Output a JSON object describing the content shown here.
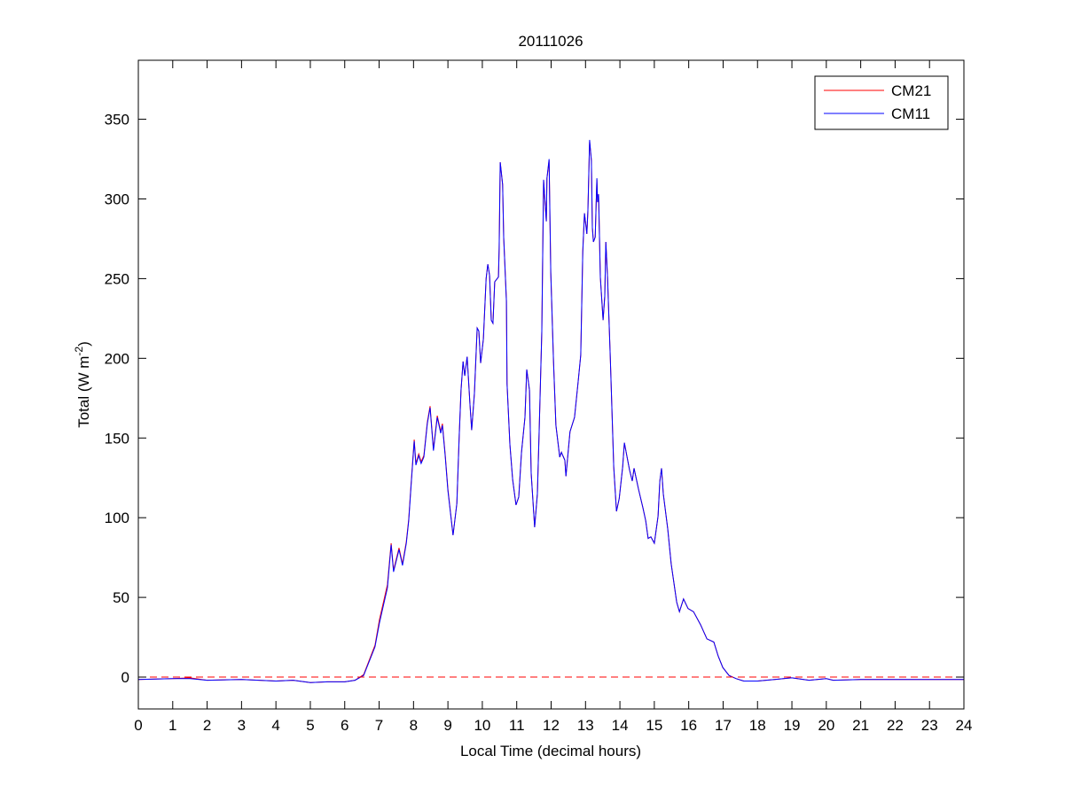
{
  "chart_data": {
    "type": "line",
    "title": "20111026",
    "xlabel": "Local Time (decimal hours)",
    "ylabel_main": "Total (W m",
    "ylabel_sup": "-2",
    "ylabel_close": ")",
    "xlim": [
      0,
      24
    ],
    "ylim": [
      -20,
      387
    ],
    "xticks": [
      0,
      1,
      2,
      3,
      4,
      5,
      6,
      7,
      8,
      9,
      10,
      11,
      12,
      13,
      14,
      15,
      16,
      17,
      18,
      19,
      20,
      21,
      22,
      23,
      24
    ],
    "yticks": [
      0,
      50,
      100,
      150,
      200,
      250,
      300,
      350
    ],
    "grid": false,
    "legend_position": "top-right",
    "reference_line": {
      "y": 0,
      "style": "dashed",
      "color": "#ff0000"
    },
    "series": [
      {
        "name": "CM21",
        "color": "#ff0000",
        "points": [
          [
            0,
            -1.5
          ],
          [
            1,
            -1
          ],
          [
            1.5,
            -0.5
          ],
          [
            2,
            -2
          ],
          [
            3,
            -1.5
          ],
          [
            4,
            -2.5
          ],
          [
            4.5,
            -2
          ],
          [
            5,
            -3.5
          ],
          [
            5.5,
            -3
          ],
          [
            6,
            -3
          ],
          [
            6.3,
            -2
          ],
          [
            6.55,
            1.5
          ],
          [
            6.88,
            20
          ],
          [
            7.01,
            36
          ],
          [
            7.24,
            58
          ],
          [
            7.35,
            84
          ],
          [
            7.42,
            67
          ],
          [
            7.58,
            81
          ],
          [
            7.68,
            71
          ],
          [
            7.79,
            85
          ],
          [
            7.86,
            99
          ],
          [
            7.92,
            118
          ],
          [
            8.02,
            149
          ],
          [
            8.07,
            134
          ],
          [
            8.15,
            140
          ],
          [
            8.22,
            135
          ],
          [
            8.3,
            139
          ],
          [
            8.4,
            160
          ],
          [
            8.48,
            170
          ],
          [
            8.58,
            143
          ],
          [
            8.69,
            164
          ],
          [
            8.79,
            154
          ],
          [
            8.84,
            159
          ],
          [
            8.92,
            140
          ],
          [
            9.0,
            118
          ],
          [
            9.15,
            89
          ],
          [
            9.26,
            109
          ],
          [
            9.33,
            152
          ],
          [
            9.38,
            180
          ],
          [
            9.44,
            198
          ],
          [
            9.49,
            189
          ],
          [
            9.56,
            201
          ],
          [
            9.64,
            171
          ],
          [
            9.69,
            155
          ],
          [
            9.77,
            178
          ],
          [
            9.85,
            219
          ],
          [
            9.9,
            217
          ],
          [
            9.95,
            197
          ],
          [
            10.03,
            212
          ],
          [
            10.11,
            250
          ],
          [
            10.16,
            259
          ],
          [
            10.21,
            252
          ],
          [
            10.26,
            224
          ],
          [
            10.31,
            222
          ],
          [
            10.36,
            248
          ],
          [
            10.47,
            251
          ],
          [
            10.49,
            269
          ],
          [
            10.52,
            323
          ],
          [
            10.59,
            309
          ],
          [
            10.62,
            276
          ],
          [
            10.7,
            236
          ],
          [
            10.72,
            184
          ],
          [
            10.8,
            146
          ],
          [
            10.88,
            124
          ],
          [
            10.98,
            108
          ],
          [
            11.06,
            113
          ],
          [
            11.14,
            141
          ],
          [
            11.24,
            163
          ],
          [
            11.29,
            193
          ],
          [
            11.37,
            180
          ],
          [
            11.42,
            128
          ],
          [
            11.52,
            94
          ],
          [
            11.6,
            115
          ],
          [
            11.65,
            152
          ],
          [
            11.73,
            217
          ],
          [
            11.78,
            312
          ],
          [
            11.86,
            286
          ],
          [
            11.88,
            313
          ],
          [
            11.94,
            324
          ],
          [
            11.99,
            254
          ],
          [
            12.07,
            198
          ],
          [
            12.14,
            158
          ],
          [
            12.25,
            138
          ],
          [
            12.3,
            141
          ],
          [
            12.4,
            136
          ],
          [
            12.43,
            126
          ],
          [
            12.55,
            154
          ],
          [
            12.68,
            163
          ],
          [
            12.79,
            186
          ],
          [
            12.86,
            202
          ],
          [
            12.92,
            267
          ],
          [
            12.97,
            291
          ],
          [
            13.04,
            278
          ],
          [
            13.07,
            293
          ],
          [
            13.12,
            336
          ],
          [
            13.17,
            324
          ],
          [
            13.2,
            282
          ],
          [
            13.23,
            273
          ],
          [
            13.28,
            276
          ],
          [
            13.33,
            312
          ],
          [
            13.35,
            298
          ],
          [
            13.38,
            303
          ],
          [
            13.43,
            251
          ],
          [
            13.51,
            224
          ],
          [
            13.56,
            239
          ],
          [
            13.59,
            273
          ],
          [
            13.64,
            251
          ],
          [
            13.72,
            201
          ],
          [
            13.82,
            132
          ],
          [
            13.9,
            104
          ],
          [
            13.98,
            112
          ],
          [
            14.08,
            132
          ],
          [
            14.13,
            147
          ],
          [
            14.28,
            130
          ],
          [
            14.36,
            123
          ],
          [
            14.41,
            131
          ],
          [
            14.54,
            118
          ],
          [
            14.67,
            106
          ],
          [
            14.75,
            98
          ],
          [
            14.82,
            87
          ],
          [
            14.9,
            88
          ],
          [
            15.0,
            84
          ],
          [
            15.11,
            101
          ],
          [
            15.16,
            123
          ],
          [
            15.21,
            131
          ],
          [
            15.26,
            115
          ],
          [
            15.39,
            93
          ],
          [
            15.49,
            71
          ],
          [
            15.65,
            47
          ],
          [
            15.73,
            41
          ],
          [
            15.85,
            49
          ],
          [
            15.98,
            43
          ],
          [
            16.14,
            41
          ],
          [
            16.34,
            33
          ],
          [
            16.53,
            24
          ],
          [
            16.73,
            22
          ],
          [
            16.86,
            13
          ],
          [
            16.99,
            6
          ],
          [
            17.17,
            1
          ],
          [
            17.38,
            -1
          ],
          [
            17.6,
            -2.5
          ],
          [
            18,
            -2.5
          ],
          [
            18.5,
            -1.5
          ],
          [
            19,
            -0.5
          ],
          [
            19.5,
            -2
          ],
          [
            20,
            -1
          ],
          [
            20.2,
            -2
          ],
          [
            21,
            -1.5
          ],
          [
            22,
            -1.5
          ],
          [
            23,
            -1.5
          ],
          [
            24,
            -1.5
          ]
        ]
      },
      {
        "name": "CM11",
        "color": "#0000ff",
        "points": [
          [
            0,
            -1.5
          ],
          [
            1,
            -1
          ],
          [
            1.5,
            -1
          ],
          [
            2,
            -2
          ],
          [
            3,
            -1.5
          ],
          [
            4,
            -2.5
          ],
          [
            4.5,
            -2
          ],
          [
            5,
            -3.5
          ],
          [
            5.5,
            -3
          ],
          [
            6,
            -3
          ],
          [
            6.3,
            -2
          ],
          [
            6.55,
            1
          ],
          [
            6.88,
            19
          ],
          [
            7.01,
            34
          ],
          [
            7.24,
            56
          ],
          [
            7.35,
            83
          ],
          [
            7.42,
            66
          ],
          [
            7.58,
            80
          ],
          [
            7.68,
            70
          ],
          [
            7.79,
            84
          ],
          [
            7.86,
            98
          ],
          [
            7.92,
            117
          ],
          [
            8.02,
            148
          ],
          [
            8.07,
            133
          ],
          [
            8.15,
            139
          ],
          [
            8.22,
            134
          ],
          [
            8.3,
            138
          ],
          [
            8.4,
            159
          ],
          [
            8.48,
            169
          ],
          [
            8.58,
            142
          ],
          [
            8.69,
            163
          ],
          [
            8.79,
            153
          ],
          [
            8.84,
            158
          ],
          [
            8.92,
            139
          ],
          [
            9.0,
            117
          ],
          [
            9.15,
            89
          ],
          [
            9.26,
            109
          ],
          [
            9.33,
            152
          ],
          [
            9.38,
            180
          ],
          [
            9.44,
            198
          ],
          [
            9.49,
            189
          ],
          [
            9.56,
            201
          ],
          [
            9.64,
            171
          ],
          [
            9.69,
            155
          ],
          [
            9.77,
            178
          ],
          [
            9.85,
            219
          ],
          [
            9.9,
            217
          ],
          [
            9.95,
            197
          ],
          [
            10.03,
            212
          ],
          [
            10.11,
            250
          ],
          [
            10.16,
            259
          ],
          [
            10.21,
            252
          ],
          [
            10.26,
            224
          ],
          [
            10.31,
            222
          ],
          [
            10.36,
            248
          ],
          [
            10.47,
            251
          ],
          [
            10.49,
            269
          ],
          [
            10.52,
            323
          ],
          [
            10.59,
            309
          ],
          [
            10.62,
            276
          ],
          [
            10.7,
            236
          ],
          [
            10.72,
            184
          ],
          [
            10.8,
            146
          ],
          [
            10.88,
            124
          ],
          [
            10.98,
            108
          ],
          [
            11.06,
            113
          ],
          [
            11.14,
            141
          ],
          [
            11.24,
            163
          ],
          [
            11.29,
            193
          ],
          [
            11.37,
            180
          ],
          [
            11.42,
            128
          ],
          [
            11.52,
            94
          ],
          [
            11.6,
            115
          ],
          [
            11.65,
            152
          ],
          [
            11.73,
            217
          ],
          [
            11.78,
            312
          ],
          [
            11.86,
            286
          ],
          [
            11.88,
            313
          ],
          [
            11.94,
            325
          ],
          [
            11.99,
            254
          ],
          [
            12.07,
            198
          ],
          [
            12.14,
            158
          ],
          [
            12.25,
            138
          ],
          [
            12.3,
            141
          ],
          [
            12.4,
            136
          ],
          [
            12.43,
            126
          ],
          [
            12.55,
            154
          ],
          [
            12.68,
            163
          ],
          [
            12.79,
            186
          ],
          [
            12.86,
            202
          ],
          [
            12.92,
            267
          ],
          [
            12.97,
            291
          ],
          [
            13.04,
            278
          ],
          [
            13.07,
            293
          ],
          [
            13.12,
            337
          ],
          [
            13.17,
            324
          ],
          [
            13.2,
            282
          ],
          [
            13.23,
            273
          ],
          [
            13.28,
            276
          ],
          [
            13.33,
            313
          ],
          [
            13.35,
            298
          ],
          [
            13.38,
            303
          ],
          [
            13.43,
            251
          ],
          [
            13.51,
            224
          ],
          [
            13.56,
            239
          ],
          [
            13.59,
            273
          ],
          [
            13.64,
            251
          ],
          [
            13.72,
            201
          ],
          [
            13.82,
            132
          ],
          [
            13.9,
            104
          ],
          [
            13.98,
            112
          ],
          [
            14.08,
            132
          ],
          [
            14.13,
            147
          ],
          [
            14.28,
            130
          ],
          [
            14.36,
            123
          ],
          [
            14.41,
            131
          ],
          [
            14.54,
            118
          ],
          [
            14.67,
            106
          ],
          [
            14.75,
            98
          ],
          [
            14.82,
            87
          ],
          [
            14.9,
            88
          ],
          [
            15.0,
            84
          ],
          [
            15.11,
            101
          ],
          [
            15.16,
            123
          ],
          [
            15.21,
            131
          ],
          [
            15.26,
            115
          ],
          [
            15.39,
            93
          ],
          [
            15.49,
            71
          ],
          [
            15.65,
            47
          ],
          [
            15.73,
            41
          ],
          [
            15.85,
            49
          ],
          [
            15.98,
            43
          ],
          [
            16.14,
            41
          ],
          [
            16.34,
            33
          ],
          [
            16.53,
            24
          ],
          [
            16.73,
            22
          ],
          [
            16.86,
            13
          ],
          [
            16.99,
            6
          ],
          [
            17.17,
            1
          ],
          [
            17.38,
            -1
          ],
          [
            17.6,
            -2.5
          ],
          [
            18,
            -2.5
          ],
          [
            18.5,
            -1.5
          ],
          [
            19,
            -0.5
          ],
          [
            19.5,
            -2
          ],
          [
            20,
            -1
          ],
          [
            20.2,
            -2
          ],
          [
            21,
            -1.5
          ],
          [
            22,
            -1.5
          ],
          [
            23,
            -1.5
          ],
          [
            24,
            -1.5
          ]
        ]
      }
    ]
  }
}
